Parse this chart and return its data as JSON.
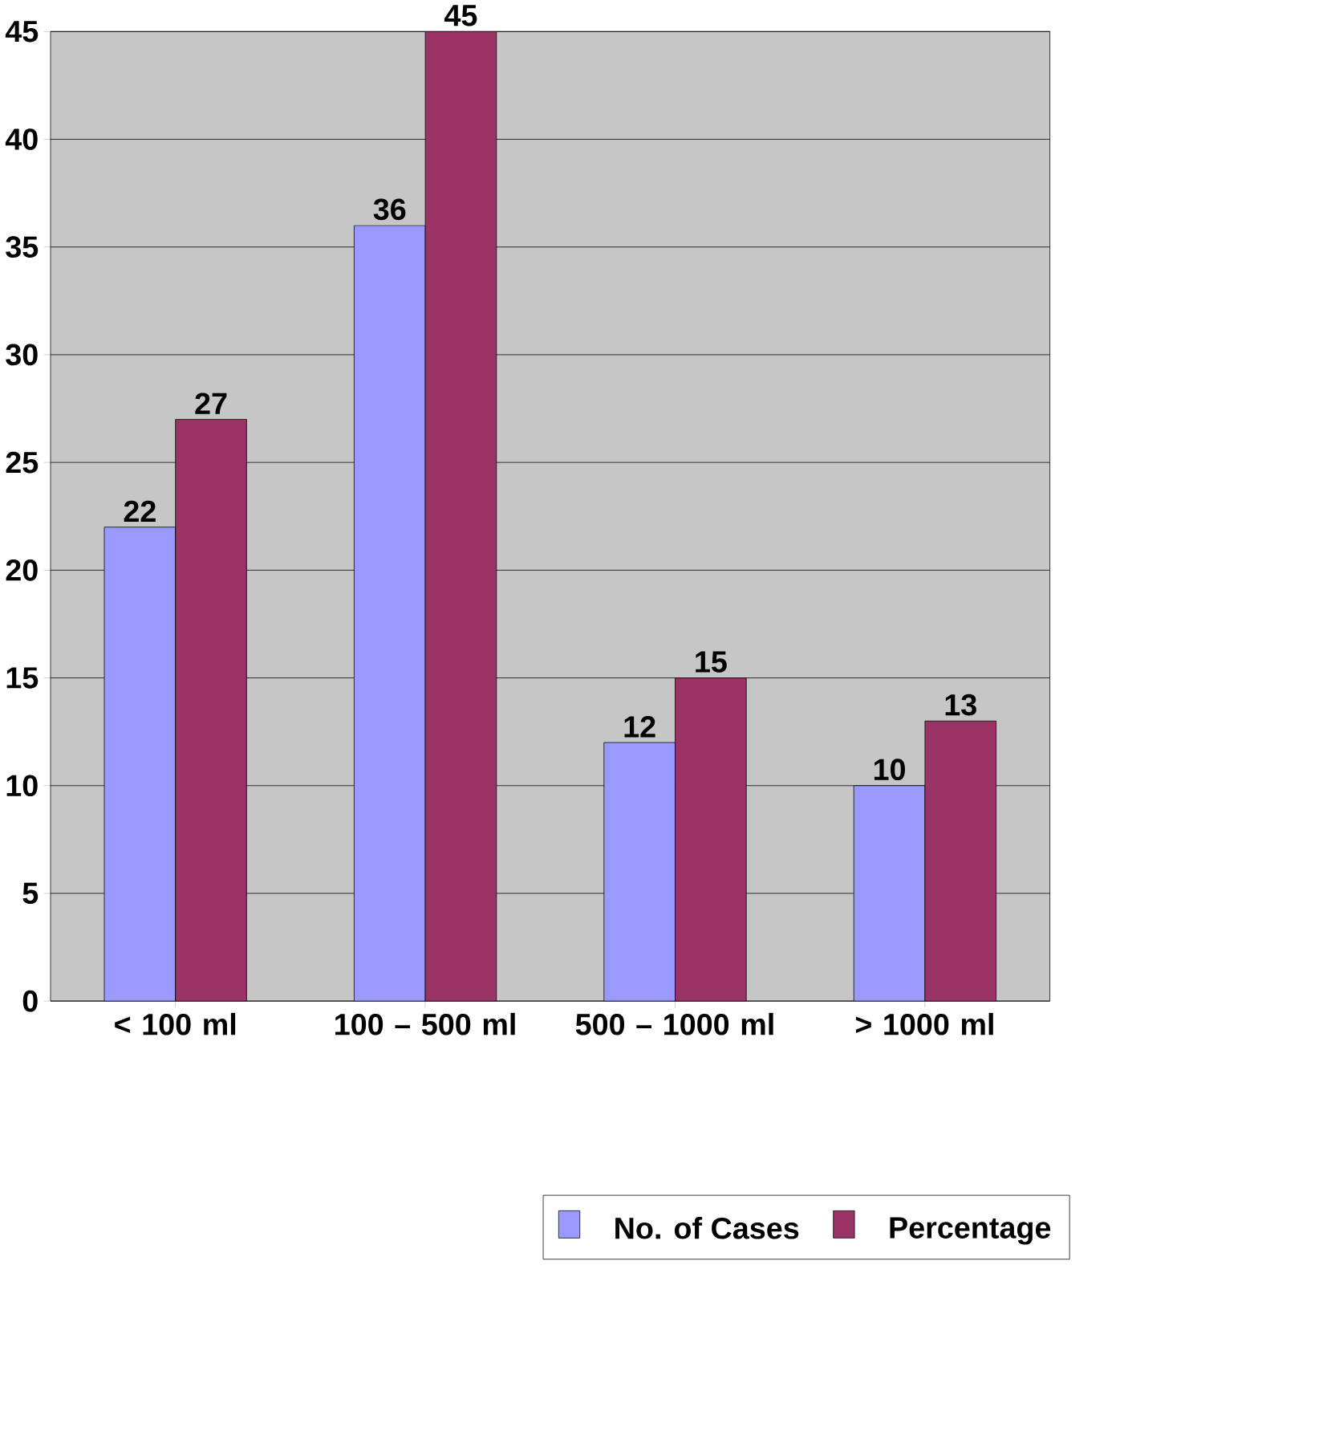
{
  "chart_data": {
    "type": "bar",
    "categories": [
      "< 100 ml",
      "100 – 500 ml",
      "500 – 1000 ml",
      "> 1000 ml"
    ],
    "series": [
      {
        "name": "No. of Cases",
        "color": "#9999ff",
        "values": [
          22,
          36,
          12,
          10
        ]
      },
      {
        "name": "Percentage",
        "color": "#993366",
        "values": [
          27,
          45,
          15,
          13
        ]
      }
    ],
    "ylim": [
      0,
      45
    ],
    "yticks": [
      0,
      5,
      10,
      15,
      20,
      25,
      30,
      35,
      40,
      45
    ],
    "grid": "y",
    "legend": "bottom right",
    "data_labels": true
  }
}
